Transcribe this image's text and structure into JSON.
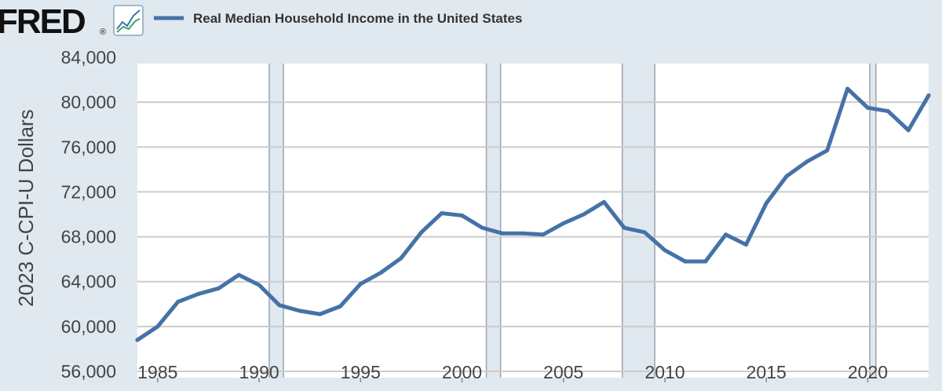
{
  "logo": {
    "text": "FRED",
    "mark": "®",
    "icon": "line-chart-icon"
  },
  "colors": {
    "background": "#e1e9f0",
    "plot": "#ffffff",
    "line": "#4572a7",
    "recession": "#e1e9f0",
    "grid": "#cccccc",
    "text": "#444444"
  },
  "chart_data": {
    "type": "line",
    "title": "Real Median Household Income in the United States",
    "xlabel": "",
    "ylabel": "2023 C-CPI-U Dollars",
    "xlim": [
      1984,
      2023
    ],
    "ylim": [
      56000,
      84000
    ],
    "x_ticks": [
      1985,
      1990,
      1995,
      2000,
      2005,
      2010,
      2015,
      2020
    ],
    "y_ticks": [
      56000,
      60000,
      64000,
      68000,
      72000,
      76000,
      80000,
      84000
    ],
    "y_tick_labels": [
      "56,000",
      "60,000",
      "64,000",
      "68,000",
      "72,000",
      "76,000",
      "80,000",
      "84,000"
    ],
    "grid": true,
    "legend": "top",
    "recessions": [
      [
        1990.5,
        1991.2
      ],
      [
        2001.2,
        2001.9
      ],
      [
        2007.9,
        2009.5
      ],
      [
        2020.1,
        2020.4
      ]
    ],
    "series": [
      {
        "name": "Real Median Household Income in the United States",
        "x": [
          1984,
          1985,
          1986,
          1987,
          1988,
          1989,
          1990,
          1991,
          1992,
          1993,
          1994,
          1995,
          1996,
          1997,
          1998,
          1999,
          2000,
          2001,
          2002,
          2003,
          2004,
          2005,
          2006,
          2007,
          2008,
          2009,
          2010,
          2011,
          2012,
          2013,
          2014,
          2015,
          2016,
          2017,
          2018,
          2019,
          2020,
          2021,
          2022,
          2023
        ],
        "values": [
          58800,
          60000,
          62200,
          62900,
          63400,
          64600,
          63700,
          61900,
          61400,
          61100,
          61800,
          63800,
          64800,
          66100,
          68400,
          70100,
          69900,
          68800,
          68300,
          68300,
          68200,
          69200,
          70000,
          71100,
          68800,
          68400,
          66800,
          65800,
          65800,
          68200,
          67300,
          71000,
          73400,
          74700,
          75700,
          81200,
          79500,
          79200,
          77500,
          80600
        ]
      }
    ]
  }
}
